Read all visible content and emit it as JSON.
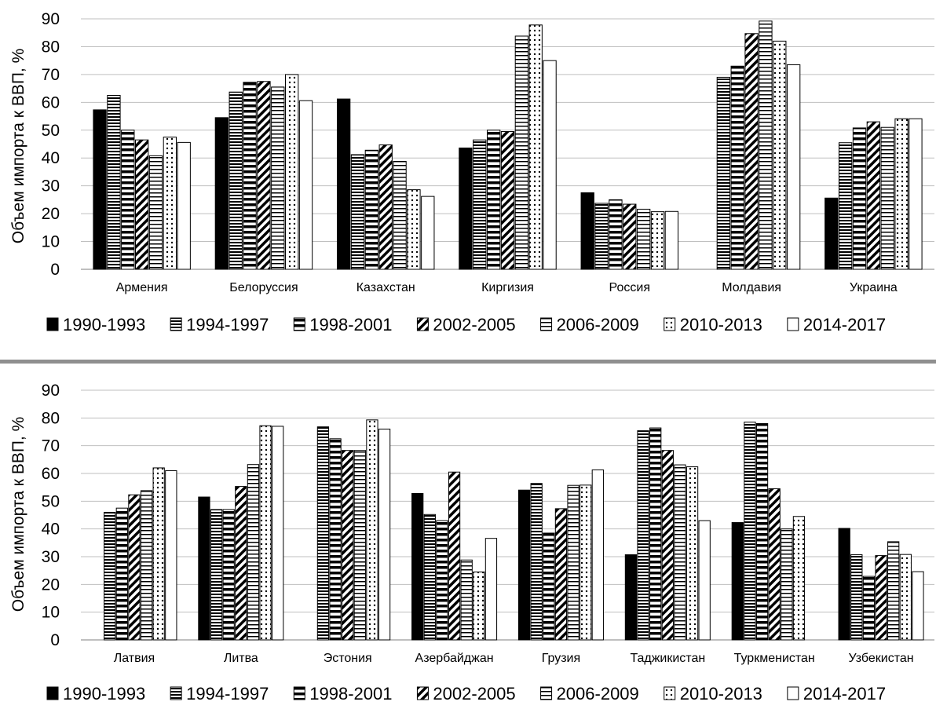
{
  "chart_data": [
    {
      "type": "bar",
      "ylabel": "Объем импорта к ВВП, %",
      "ylim": [
        0,
        90
      ],
      "yticks": [
        "0",
        "10",
        "20",
        "30",
        "40",
        "50",
        "60",
        "70",
        "80",
        "90"
      ],
      "grid": true,
      "legend_position": "bottom",
      "categories": [
        "Армения",
        "Белоруссия",
        "Казахстан",
        "Киргизия",
        "Россия",
        "Молдавия",
        "Украина"
      ],
      "series": [
        {
          "name": "1990-1993",
          "values": [
            57.3,
            54.5,
            61.2,
            43.6,
            27.5,
            null,
            25.6
          ]
        },
        {
          "name": "1994-1997",
          "values": [
            62.5,
            63.7,
            41.2,
            46.5,
            23.7,
            69.0,
            45.5
          ]
        },
        {
          "name": "1998-2001",
          "values": [
            50.0,
            67.2,
            42.8,
            50.0,
            25.0,
            73.0,
            50.8
          ]
        },
        {
          "name": "2002-2005",
          "values": [
            46.5,
            67.5,
            44.7,
            49.5,
            23.4,
            84.7,
            53.0
          ]
        },
        {
          "name": "2006-2009",
          "values": [
            40.8,
            65.5,
            38.8,
            83.8,
            21.6,
            89.2,
            51.0
          ]
        },
        {
          "name": "2010-2013",
          "values": [
            47.5,
            70.0,
            28.6,
            87.8,
            20.7,
            82.0,
            54.1
          ]
        },
        {
          "name": "2014-2017",
          "values": [
            45.6,
            60.6,
            26.2,
            75.0,
            20.8,
            73.5,
            54.1
          ]
        }
      ]
    },
    {
      "type": "bar",
      "ylabel": "Объем импорта к ВВП, %",
      "ylim": [
        0,
        90
      ],
      "yticks": [
        "0",
        "10",
        "20",
        "30",
        "40",
        "50",
        "60",
        "70",
        "80",
        "90"
      ],
      "grid": true,
      "legend_position": "bottom",
      "categories": [
        "Латвия",
        "Литва",
        "Эстония",
        "Азербайджан",
        "Грузия",
        "Таджикистан",
        "Туркменистан",
        "Узбекистан"
      ],
      "series": [
        {
          "name": "1990-1993",
          "values": [
            null,
            51.5,
            null,
            52.8,
            54.0,
            30.7,
            42.3,
            40.2
          ]
        },
        {
          "name": "1994-1997",
          "values": [
            46.0,
            47.0,
            76.8,
            45.2,
            56.4,
            75.4,
            78.5,
            30.7
          ]
        },
        {
          "name": "1998-2001",
          "values": [
            47.5,
            47.0,
            72.5,
            43.0,
            38.5,
            76.4,
            78.0,
            22.9
          ]
        },
        {
          "name": "2002-2005",
          "values": [
            52.3,
            55.3,
            68.3,
            60.5,
            47.3,
            68.3,
            54.5,
            30.4
          ]
        },
        {
          "name": "2006-2009",
          "values": [
            53.8,
            63.2,
            68.3,
            28.8,
            55.7,
            63.1,
            40.0,
            35.4
          ]
        },
        {
          "name": "2010-2013",
          "values": [
            62.0,
            77.2,
            79.3,
            24.5,
            55.8,
            62.4,
            44.5,
            30.8
          ]
        },
        {
          "name": "2014-2017",
          "values": [
            61.0,
            77.0,
            76.0,
            36.6,
            61.3,
            43.0,
            null,
            24.6
          ]
        }
      ]
    }
  ],
  "colors": {
    "bar_stroke": "#000000",
    "grid": "#bfbfbf",
    "axis": "#7f7f7f",
    "divider": "#8f8f8f"
  },
  "pattern_names": [
    "solid-black",
    "dense-horizontal-lines",
    "thick-horizontal-stripes",
    "diagonal-stripes",
    "horizontal-lines",
    "dotted",
    "white"
  ]
}
